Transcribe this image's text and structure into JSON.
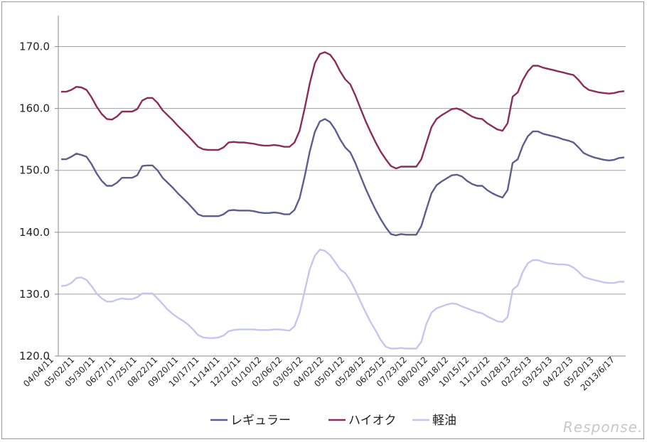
{
  "chart_data": {
    "type": "line",
    "title": "",
    "xlabel": "",
    "ylabel": "",
    "ylim": [
      120,
      175
    ],
    "yticks": [
      "120.0",
      "130.0",
      "140.0",
      "150.0",
      "160.0",
      "170.0"
    ],
    "grid": true,
    "legend_position": "bottom",
    "x_tick_labels": [
      "04/04/11",
      "05/02/11",
      "05/30/11",
      "06/27/11",
      "07/25/11",
      "08/22/11",
      "09/20/11",
      "10/17/11",
      "11/14/11",
      "12/12/11",
      "01/10/12",
      "02/06/12",
      "03/05/12",
      "04/02/12",
      "05/01/12",
      "05/28/12",
      "06/25/12",
      "07/23/12",
      "08/20/12",
      "09/18/12",
      "10/15/12",
      "11/12/12",
      "01/28/13",
      "02/25/13",
      "03/25/13",
      "04/22/13",
      "05/20/13",
      "2013/6/17"
    ],
    "series": [
      {
        "name": "レギュラー",
        "color": "#5b5e8e",
        "values": [
          151.8,
          151.8,
          152.2,
          152.7,
          152.5,
          152.2,
          151.0,
          149.5,
          148.3,
          147.5,
          147.5,
          148.0,
          148.8,
          148.8,
          148.8,
          149.2,
          150.7,
          150.8,
          150.8,
          150.0,
          148.8,
          148.0,
          147.2,
          146.3,
          145.5,
          144.7,
          143.8,
          142.9,
          142.6,
          142.6,
          142.6,
          142.6,
          142.9,
          143.5,
          143.6,
          143.5,
          143.5,
          143.5,
          143.4,
          143.2,
          143.1,
          143.1,
          143.2,
          143.1,
          142.9,
          142.9,
          143.6,
          145.5,
          149.0,
          153.0,
          156.2,
          157.9,
          158.3,
          157.8,
          156.6,
          155.0,
          153.7,
          152.9,
          151.2,
          149.1,
          147.1,
          145.3,
          143.6,
          142.1,
          140.8,
          139.7,
          139.5,
          139.7,
          139.6,
          139.6,
          139.6,
          141.0,
          143.7,
          146.3,
          147.6,
          148.2,
          148.7,
          149.2,
          149.3,
          149.0,
          148.3,
          147.8,
          147.5,
          147.5,
          146.8,
          146.3,
          145.9,
          145.6,
          146.8,
          151.2,
          151.8,
          154.0,
          155.5,
          156.3,
          156.3,
          155.9,
          155.7,
          155.5,
          155.3,
          155.0,
          154.8,
          154.5,
          153.7,
          152.8,
          152.4,
          152.1,
          151.9,
          151.7,
          151.6,
          151.7,
          152.0,
          152.1
        ]
      },
      {
        "name": "ハイオク",
        "color": "#8b2c5c",
        "values": [
          162.7,
          162.7,
          163.0,
          163.5,
          163.4,
          163.0,
          161.8,
          160.3,
          159.1,
          158.3,
          158.2,
          158.7,
          159.5,
          159.5,
          159.5,
          159.9,
          161.3,
          161.7,
          161.7,
          160.9,
          159.7,
          158.9,
          158.1,
          157.2,
          156.4,
          155.6,
          154.7,
          153.8,
          153.4,
          153.3,
          153.3,
          153.3,
          153.7,
          154.5,
          154.6,
          154.5,
          154.5,
          154.4,
          154.3,
          154.1,
          154.0,
          154.0,
          154.1,
          154.0,
          153.8,
          153.8,
          154.5,
          156.4,
          160.0,
          164.0,
          167.3,
          168.8,
          169.1,
          168.7,
          167.6,
          166.0,
          164.7,
          163.9,
          162.1,
          160.0,
          158.0,
          156.2,
          154.5,
          153.0,
          151.8,
          150.7,
          150.3,
          150.6,
          150.6,
          150.6,
          150.6,
          151.8,
          154.4,
          157.0,
          158.3,
          158.9,
          159.4,
          159.9,
          160.0,
          159.7,
          159.2,
          158.7,
          158.4,
          158.3,
          157.6,
          157.1,
          156.6,
          156.4,
          157.6,
          161.9,
          162.6,
          164.6,
          166.0,
          166.9,
          166.9,
          166.6,
          166.4,
          166.2,
          166.0,
          165.8,
          165.6,
          165.4,
          164.6,
          163.6,
          163.0,
          162.8,
          162.6,
          162.5,
          162.4,
          162.5,
          162.7,
          162.8
        ]
      },
      {
        "name": "軽油",
        "color": "#c4c6f0",
        "values": [
          131.3,
          131.4,
          131.8,
          132.6,
          132.7,
          132.3,
          131.3,
          130.1,
          129.3,
          128.8,
          128.8,
          129.1,
          129.3,
          129.2,
          129.2,
          129.5,
          130.1,
          130.1,
          130.1,
          129.3,
          128.4,
          127.5,
          126.8,
          126.2,
          125.7,
          125.1,
          124.3,
          123.4,
          123.0,
          122.9,
          122.9,
          123.0,
          123.3,
          124.0,
          124.2,
          124.3,
          124.3,
          124.3,
          124.3,
          124.2,
          124.2,
          124.2,
          124.3,
          124.3,
          124.2,
          124.1,
          124.8,
          127.0,
          130.5,
          134.0,
          136.2,
          137.2,
          137.0,
          136.3,
          135.2,
          134.0,
          133.4,
          132.2,
          130.6,
          128.8,
          127.1,
          125.5,
          124.1,
          122.6,
          121.5,
          121.2,
          121.2,
          121.3,
          121.2,
          121.2,
          121.2,
          122.3,
          125.2,
          127.0,
          127.7,
          128.0,
          128.3,
          128.5,
          128.4,
          128.0,
          127.7,
          127.4,
          127.1,
          126.9,
          126.4,
          126.0,
          125.6,
          125.5,
          126.3,
          130.7,
          131.4,
          133.6,
          135.0,
          135.5,
          135.5,
          135.2,
          135.0,
          134.9,
          134.8,
          134.8,
          134.7,
          134.3,
          133.6,
          132.8,
          132.5,
          132.3,
          132.1,
          131.9,
          131.8,
          131.8,
          132.0,
          132.0
        ]
      }
    ]
  },
  "watermark": "Response."
}
